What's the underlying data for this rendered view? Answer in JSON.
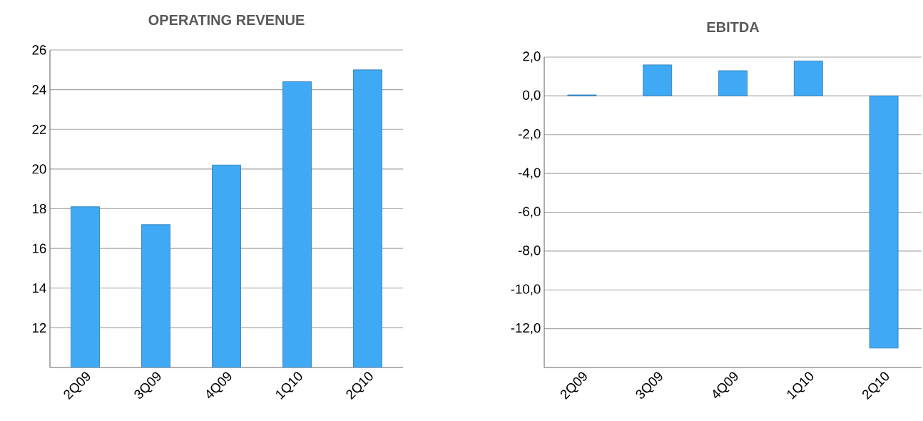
{
  "chart_data": [
    {
      "type": "bar",
      "title": "OPERATING REVENUE",
      "categories": [
        "2Q09",
        "3Q09",
        "4Q09",
        "1Q10",
        "2Q10"
      ],
      "values": [
        18.1,
        17.2,
        20.2,
        24.4,
        25.0
      ],
      "color": "#3fa9f5",
      "ylim": [
        10,
        26
      ],
      "yticks": [
        12,
        14,
        16,
        18,
        20,
        22,
        24,
        26
      ],
      "grid": "y"
    },
    {
      "type": "bar",
      "title": "EBITDA",
      "categories": [
        "2Q09",
        "3Q09",
        "4Q09",
        "1Q10",
        "2Q10"
      ],
      "values": [
        0.05,
        1.6,
        1.3,
        1.8,
        -13.0
      ],
      "color": "#3fa9f5",
      "ylim": [
        -14,
        2
      ],
      "yticks": [
        {
          "value": 2,
          "label": "2,0"
        },
        {
          "value": 0,
          "label": "0,0"
        },
        {
          "value": -2,
          "label": "-2,0"
        },
        {
          "value": -4,
          "label": "-4,0"
        },
        {
          "value": -6,
          "label": "-6,0"
        },
        {
          "value": -8,
          "label": "-8,0"
        },
        {
          "value": -10,
          "label": "-10,0"
        },
        {
          "value": -12,
          "label": "-12,0"
        }
      ],
      "grid": "y"
    }
  ]
}
